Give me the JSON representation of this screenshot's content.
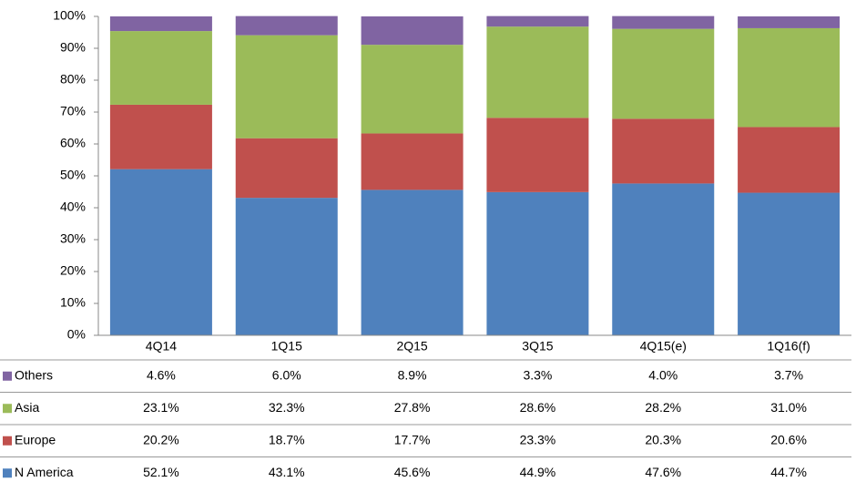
{
  "chart_data": {
    "type": "stacked_bar",
    "categories": [
      "4Q14",
      "1Q15",
      "2Q15",
      "3Q15",
      "4Q15(e)",
      "1Q16(f)"
    ],
    "series": [
      {
        "name": "N America",
        "color": "#4f81bd",
        "values": [
          52.1,
          43.1,
          45.6,
          44.9,
          47.6,
          44.7
        ],
        "value_labels": [
          "52.1%",
          "43.1%",
          "45.6%",
          "44.9%",
          "47.6%",
          "44.7%"
        ]
      },
      {
        "name": "Europe",
        "color": "#c0504d",
        "values": [
          20.2,
          18.7,
          17.7,
          23.3,
          20.3,
          20.6
        ],
        "value_labels": [
          "20.2%",
          "18.7%",
          "17.7%",
          "23.3%",
          "20.3%",
          "20.6%"
        ]
      },
      {
        "name": "Asia",
        "color": "#9bbb59",
        "values": [
          23.1,
          32.3,
          27.8,
          28.6,
          28.2,
          31.0
        ],
        "value_labels": [
          "23.1%",
          "32.3%",
          "27.8%",
          "28.6%",
          "28.2%",
          "31.0%"
        ]
      },
      {
        "name": "Others",
        "color": "#8064a2",
        "values": [
          4.6,
          6.0,
          8.9,
          3.3,
          4.0,
          3.7
        ],
        "value_labels": [
          "4.6%",
          "6.0%",
          "8.9%",
          "3.3%",
          "4.0%",
          "3.7%"
        ]
      }
    ],
    "ylim": [
      0,
      100
    ],
    "yticks": [
      {
        "value": 0,
        "label": "0%"
      },
      {
        "value": 10,
        "label": "10%"
      },
      {
        "value": 20,
        "label": "20%"
      },
      {
        "value": 30,
        "label": "30%"
      },
      {
        "value": 40,
        "label": "40%"
      },
      {
        "value": 50,
        "label": "50%"
      },
      {
        "value": 60,
        "label": "60%"
      },
      {
        "value": 70,
        "label": "70%"
      },
      {
        "value": 80,
        "label": "80%"
      },
      {
        "value": 90,
        "label": "90%"
      },
      {
        "value": 100,
        "label": "100%"
      }
    ],
    "grid": false
  }
}
